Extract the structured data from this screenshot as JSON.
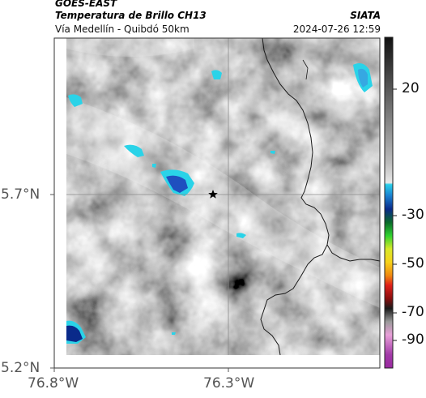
{
  "header": {
    "satellite": "GOES-EAST",
    "product": "Temperatura de Brillo CH13",
    "region": "Vía Medellín - Quibdó 50km",
    "brand": "SIATA",
    "datetime": "2024-07-26 12:59"
  },
  "axes": {
    "lat_labels": [
      "5.7°N",
      "5.2°N"
    ],
    "lon_labels": [
      "76.8°W",
      "76.3°W"
    ]
  },
  "colorbar": {
    "tick_labels": [
      "20",
      "-30",
      "-50",
      "-70",
      "-90"
    ]
  },
  "colors": {
    "cold_cyan": "#2ad3e8",
    "cold_blue": "#1f4fbf",
    "border_line": "#1a1a1a",
    "grid_line": "#8a8a8a"
  }
}
